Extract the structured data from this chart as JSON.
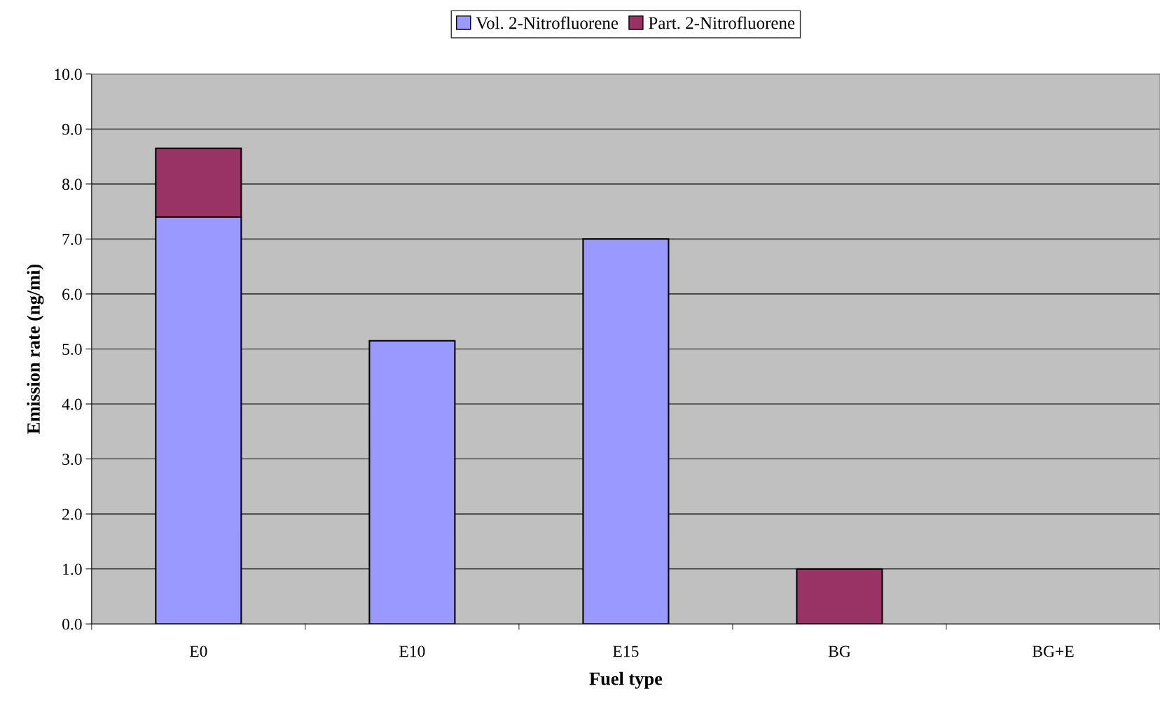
{
  "chart_data": {
    "type": "bar",
    "stacked": true,
    "xlabel": "Fuel type",
    "ylabel": "Emission rate (ng/mi)",
    "categories": [
      "E0",
      "E10",
      "E15",
      "BG",
      "BG+E"
    ],
    "series": [
      {
        "name": "Vol. 2-Nitrofluorene",
        "color": "#9999ff",
        "values": [
          7.4,
          5.15,
          7.0,
          0,
          0
        ]
      },
      {
        "name": "Part. 2-Nitrofluorene",
        "color": "#993366",
        "values": [
          1.25,
          0,
          0,
          1.0,
          0
        ]
      }
    ],
    "ylim": [
      0,
      10
    ],
    "yticks": [
      {
        "value": 0,
        "label": "0.0"
      },
      {
        "value": 1,
        "label": "1.0"
      },
      {
        "value": 2,
        "label": "2.0"
      },
      {
        "value": 3,
        "label": "3.0"
      },
      {
        "value": 4,
        "label": "4.0"
      },
      {
        "value": 5,
        "label": "5.0"
      },
      {
        "value": 6,
        "label": "6.0"
      },
      {
        "value": 7,
        "label": "7.0"
      },
      {
        "value": 8,
        "label": "8.0"
      },
      {
        "value": 9,
        "label": "9.0"
      },
      {
        "value": 10,
        "label": "10.0"
      }
    ],
    "grid": "y",
    "legend": "top"
  }
}
